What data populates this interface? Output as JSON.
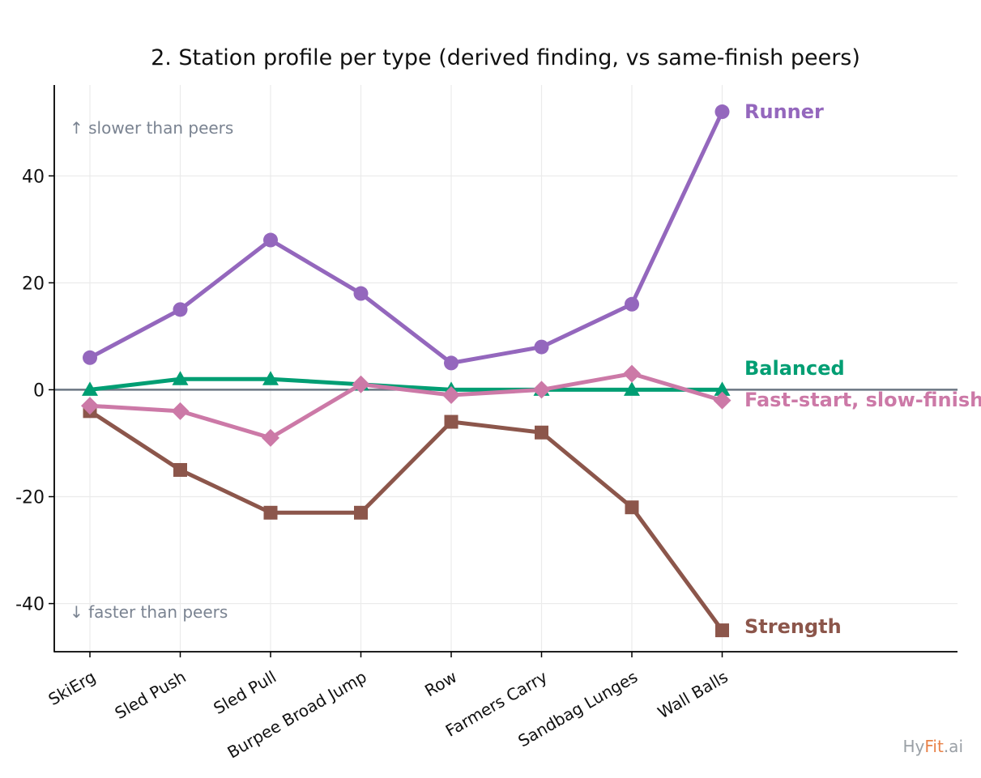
{
  "chart_data": {
    "type": "line",
    "title": "2. Station profile per type (derived finding, vs same-finish peers)",
    "xlabel": "",
    "ylabel": "",
    "categories": [
      "SkiErg",
      "Sled Push",
      "Sled Pull",
      "Burpee Broad Jump",
      "Row",
      "Farmers Carry",
      "Sandbag Lunges",
      "Wall Balls"
    ],
    "ylim": [
      -49,
      57
    ],
    "yticks": [
      -40,
      -20,
      0,
      20,
      40
    ],
    "ytick_labels": [
      "-40",
      "-20",
      "0",
      "20",
      "40"
    ],
    "grid": true,
    "annotations": {
      "upper": "↑ slower than peers",
      "lower": "↓ faster than peers"
    },
    "series": [
      {
        "name": "Runner",
        "color": "#9467bd",
        "marker": "circle",
        "values": [
          6,
          15,
          28,
          18,
          5,
          8,
          16,
          52
        ]
      },
      {
        "name": "Balanced",
        "color": "#009e73",
        "marker": "triangle",
        "values": [
          0,
          2,
          2,
          1,
          0,
          0,
          0,
          0
        ]
      },
      {
        "name": "Fast-start, slow-finish",
        "color": "#cc79a7",
        "marker": "diamond",
        "values": [
          -3,
          -4,
          -9,
          1,
          -1,
          0,
          3,
          -2
        ]
      },
      {
        "name": "Strength",
        "color": "#8c564b",
        "marker": "square",
        "values": [
          -4,
          -15,
          -23,
          -23,
          -6,
          -8,
          -22,
          -45
        ]
      }
    ],
    "zero_line_color": "#6b7683"
  },
  "brand": {
    "part1": "Hy",
    "part2": "Fit",
    "part3": ".ai",
    "color1": "#9aa0a6",
    "color2": "#e8834a",
    "color3": "#9aa0a6"
  }
}
